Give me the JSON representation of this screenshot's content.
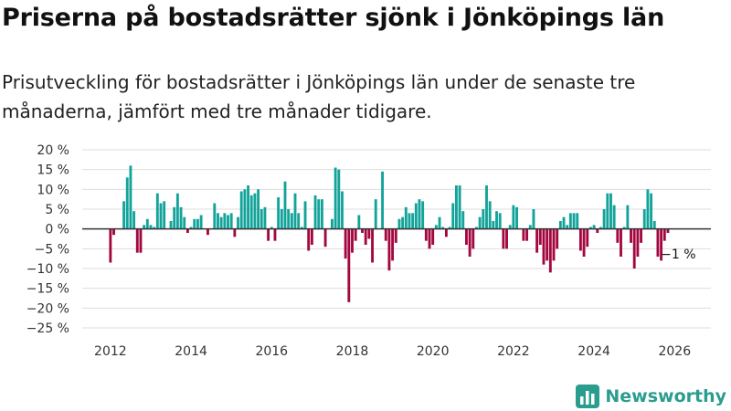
{
  "page": {
    "title": "Priserna på bostadsrätter sjönk i Jönköpings län",
    "subtitle": "Prisutveckling för bostadsrätter i Jönköpings län under de senaste tre månaderna, jämfört med tre månader tidigare."
  },
  "brand": {
    "name": "Newsworthy",
    "logo_icon": "bar-chart-icon",
    "color": "#2a9d8f"
  },
  "colors": {
    "positive": "#12a39a",
    "negative": "#a3073f",
    "grid": "#dddddd",
    "zero_line": "#333333"
  },
  "chart_data": {
    "type": "bar",
    "title": "Priserna på bostadsrätter sjönk i Jönköpings län",
    "ylabel": "",
    "xlabel": "",
    "unit": "%",
    "ylim": [
      -25,
      20
    ],
    "yticks": [
      20,
      15,
      10,
      5,
      0,
      -5,
      -10,
      -15,
      -20,
      -25
    ],
    "ytick_labels": [
      "20 %",
      "15 %",
      "10 %",
      "5 %",
      "0 %",
      "−5 %",
      "−10 %",
      "−15 %",
      "−20 %",
      "−25 %"
    ],
    "xlim": [
      2011.3,
      2026.9
    ],
    "xticks": [
      2012,
      2014,
      2016,
      2018,
      2020,
      2022,
      2024,
      2026
    ],
    "xtick_labels": [
      "2012",
      "2014",
      "2016",
      "2018",
      "2020",
      "2022",
      "2024",
      "2026"
    ],
    "start": [
      2012,
      1
    ],
    "values": [
      -8.5,
      -1.5,
      0,
      0,
      7,
      13,
      16,
      4.5,
      -6,
      -6,
      1,
      2.5,
      1,
      0.5,
      9,
      6.5,
      7,
      0,
      2,
      5.5,
      9,
      5.5,
      3,
      -1,
      0.5,
      2.5,
      2.5,
      3.5,
      0,
      -1.5,
      0,
      6.5,
      4,
      3,
      4,
      3.5,
      4,
      -2,
      3,
      9.5,
      10,
      11,
      8.5,
      9,
      10,
      5,
      5.5,
      -3,
      0.5,
      -3,
      8,
      5,
      12,
      5,
      4,
      9,
      4,
      0.5,
      7,
      -5.5,
      -4,
      8.5,
      7.5,
      7.5,
      -4.5,
      0,
      2.5,
      15.5,
      15,
      9.5,
      -7.5,
      -18.5,
      -6,
      -3,
      3.5,
      -1,
      -4,
      -2.5,
      -8.5,
      7.5,
      0,
      14.5,
      -3,
      -10.5,
      -8,
      -3.5,
      2.5,
      3,
      5.5,
      4,
      4,
      6.5,
      7.5,
      7,
      -3,
      -5,
      -4,
      1,
      3,
      0.5,
      -2,
      0.5,
      6.5,
      11,
      11,
      4.5,
      -4,
      -7,
      -5,
      0.5,
      3,
      5,
      11,
      7,
      2,
      4.5,
      4,
      -5,
      -5,
      1,
      6,
      5.5,
      0,
      -3,
      -3,
      1,
      5,
      -6,
      -4,
      -9,
      -8,
      -11,
      -8,
      -5,
      2,
      3,
      1,
      4,
      4,
      4,
      -5.5,
      -7,
      -4.5,
      0.5,
      1,
      -1,
      0.5,
      5,
      9,
      9,
      6,
      -3.5,
      -7,
      0.5,
      6,
      -3.5,
      -10,
      -7,
      -3.5,
      5,
      10,
      9,
      2,
      -7,
      -8,
      -3,
      -1
    ],
    "annotations": [
      {
        "text": "−1 %",
        "x": [
          2026,
          1
        ],
        "y": -1
      }
    ]
  }
}
